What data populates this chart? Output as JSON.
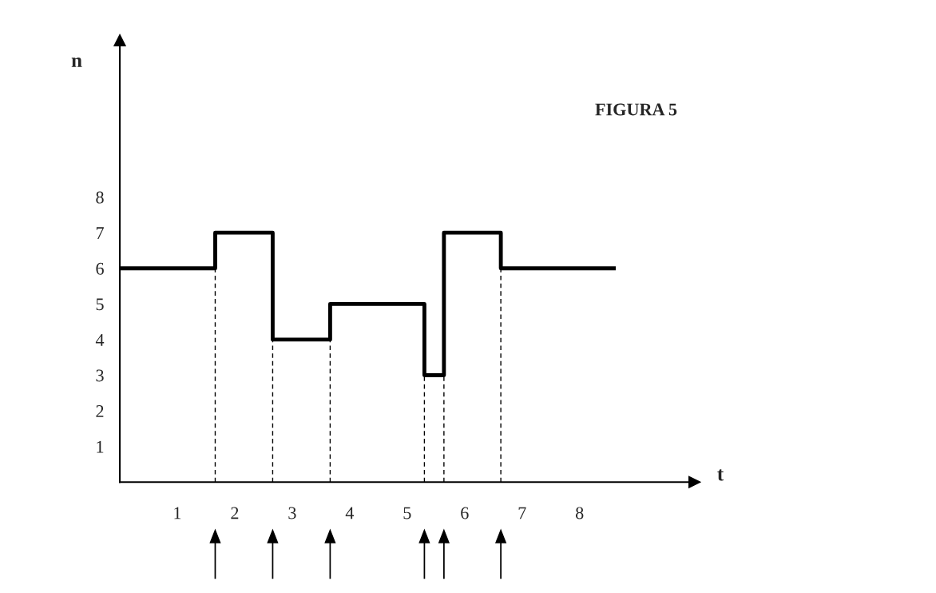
{
  "chart_data": {
    "type": "step",
    "title": "FIGURA 5",
    "xlabel": "t",
    "ylabel": "n",
    "x": [
      0,
      1.66,
      2.66,
      3.66,
      5.3,
      5.64,
      6.63,
      8.63
    ],
    "series": [
      {
        "color": "#000000",
        "values": [
          6,
          7,
          4,
          5,
          3,
          7,
          6,
          6
        ]
      }
    ],
    "xlim": [
      0,
      10
    ],
    "ylim": [
      0,
      12.4
    ],
    "xticks": [
      1,
      2,
      3,
      4,
      5,
      6,
      7,
      8
    ],
    "yticks": [
      1,
      2,
      3,
      4,
      5,
      6,
      7,
      8
    ],
    "ref_lines": [
      {
        "axis": "x",
        "value": 1.66,
        "line_style": "dashed"
      },
      {
        "axis": "x",
        "value": 2.66,
        "line_style": "dashed"
      },
      {
        "axis": "x",
        "value": 3.66,
        "line_style": "dashed"
      },
      {
        "axis": "x",
        "value": 5.3,
        "line_style": "dashed"
      },
      {
        "axis": "x",
        "value": 5.64,
        "line_style": "dashed"
      },
      {
        "axis": "x",
        "value": 6.63,
        "line_style": "dashed"
      }
    ],
    "grid": false,
    "line_style": "solid",
    "marker": "none"
  }
}
